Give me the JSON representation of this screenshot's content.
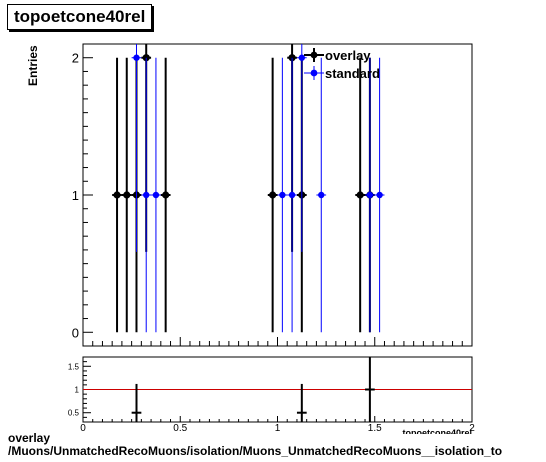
{
  "header": {
    "title": "topoetcone40rel"
  },
  "footer": {
    "line1": "overlay",
    "line2": "/Muons/UnmatchedRecoMuons/isolation/Muons_UnmatchedRecoMuons__isolation_to"
  },
  "chart_data": {
    "type": "scatter",
    "ylabel": "Entries",
    "xlabel": "topoetcone40rel",
    "xlim": [
      0,
      2
    ],
    "ylim": [
      -0.1,
      2.1
    ],
    "x_ticks": [
      "0",
      "0.5",
      "1",
      "1.5",
      "2"
    ],
    "y_ticks": [
      "0",
      "1",
      "2"
    ],
    "legend_position": "top-right",
    "colors": {
      "overlay": "#000000",
      "standard": "#0000ff",
      "ratio_line": "#cc0000"
    },
    "series": [
      {
        "name": "overlay",
        "points": [
          {
            "x": 0.175,
            "y": 1
          },
          {
            "x": 0.225,
            "y": 1
          },
          {
            "x": 0.275,
            "y": 1
          },
          {
            "x": 0.325,
            "y": 2
          },
          {
            "x": 0.425,
            "y": 1
          },
          {
            "x": 0.975,
            "y": 1
          },
          {
            "x": 1.075,
            "y": 2
          },
          {
            "x": 1.125,
            "y": 1
          },
          {
            "x": 1.425,
            "y": 1
          },
          {
            "x": 1.475,
            "y": 1
          }
        ]
      },
      {
        "name": "standard",
        "points": [
          {
            "x": 0.275,
            "y": 2
          },
          {
            "x": 0.325,
            "y": 1
          },
          {
            "x": 0.375,
            "y": 1
          },
          {
            "x": 1.025,
            "y": 1
          },
          {
            "x": 1.075,
            "y": 1
          },
          {
            "x": 1.125,
            "y": 2
          },
          {
            "x": 1.225,
            "y": 1
          },
          {
            "x": 1.475,
            "y": 1
          },
          {
            "x": 1.525,
            "y": 1
          }
        ]
      }
    ],
    "ratio": {
      "ylim": [
        0.3,
        1.7
      ],
      "y_ticks": [
        "0.5",
        "1",
        "1.5"
      ],
      "reference": 1,
      "points": [
        {
          "x": 0.275,
          "y": 0.5,
          "err": 0.62
        },
        {
          "x": 1.125,
          "y": 0.5,
          "err": 0.62
        },
        {
          "x": 1.475,
          "y": 1.0,
          "err": 1.0
        }
      ]
    }
  }
}
